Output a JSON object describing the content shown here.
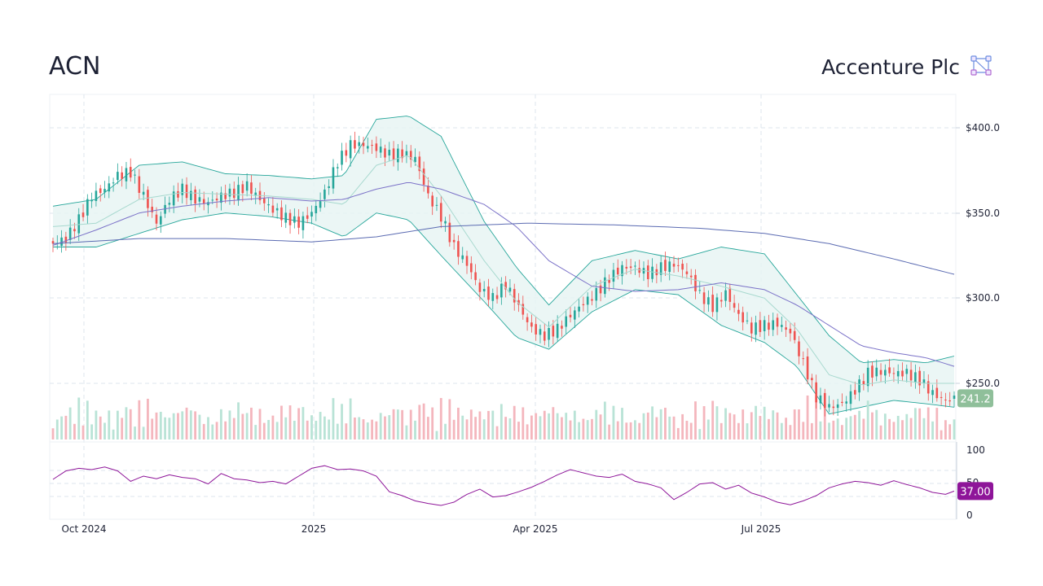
{
  "header": {
    "ticker": "ACN",
    "company": "Accenture Plc",
    "logo_icon": "network-nodes-icon"
  },
  "colors": {
    "up": "#26a69a",
    "down": "#ef5350",
    "band_fill": "#e6f4f2",
    "band_line": "#26a69a",
    "ma_short": "#a8d9cf",
    "ma_mid": "#7b72c8",
    "ma_long": "#5b6bb2",
    "rsi": "#8e1599",
    "price_badge": "#8fbf9a",
    "rsi_badge": "#8e1599",
    "grid": "#dde6ee"
  },
  "chart_data": {
    "type": "candlestick",
    "x_axis": {
      "ticks": [
        "Oct 2024",
        "2025",
        "Apr 2025",
        "Jul 2025"
      ]
    },
    "price_axis": {
      "ticks": [
        "$250.0",
        "$300.0",
        "$350.0",
        "$400.0"
      ],
      "range": [
        230,
        420
      ]
    },
    "rsi_axis": {
      "ticks": [
        "0",
        "50",
        "100"
      ],
      "range": [
        0,
        100
      ]
    },
    "last_price_label": "241.2",
    "last_rsi_label": "37.00",
    "price_close_path": [
      [
        0,
        332
      ],
      [
        6,
        335
      ],
      [
        12,
        346
      ],
      [
        18,
        360
      ],
      [
        24,
        364
      ],
      [
        30,
        372
      ],
      [
        36,
        374
      ],
      [
        42,
        360
      ],
      [
        48,
        344
      ],
      [
        54,
        358
      ],
      [
        60,
        364
      ],
      [
        66,
        358
      ],
      [
        72,
        356
      ],
      [
        78,
        360
      ],
      [
        84,
        362
      ],
      [
        90,
        366
      ],
      [
        96,
        358
      ],
      [
        102,
        352
      ],
      [
        108,
        347
      ],
      [
        114,
        344
      ],
      [
        120,
        350
      ],
      [
        126,
        362
      ],
      [
        132,
        380
      ],
      [
        138,
        390
      ],
      [
        144,
        390
      ],
      [
        150,
        388
      ],
      [
        156,
        384
      ],
      [
        162,
        385
      ],
      [
        168,
        382
      ],
      [
        174,
        360
      ],
      [
        180,
        348
      ],
      [
        186,
        330
      ],
      [
        192,
        320
      ],
      [
        198,
        305
      ],
      [
        204,
        300
      ],
      [
        210,
        308
      ],
      [
        216,
        295
      ],
      [
        222,
        282
      ],
      [
        228,
        278
      ],
      [
        234,
        282
      ],
      [
        240,
        290
      ],
      [
        246,
        297
      ],
      [
        252,
        303
      ],
      [
        258,
        312
      ],
      [
        264,
        318
      ],
      [
        270,
        318
      ],
      [
        276,
        314
      ],
      [
        282,
        318
      ],
      [
        288,
        320
      ],
      [
        294,
        315
      ],
      [
        300,
        302
      ],
      [
        306,
        295
      ],
      [
        312,
        303
      ],
      [
        318,
        290
      ],
      [
        324,
        282
      ],
      [
        330,
        284
      ],
      [
        336,
        285
      ],
      [
        342,
        280
      ],
      [
        348,
        262
      ],
      [
        354,
        242
      ],
      [
        360,
        236
      ],
      [
        366,
        238
      ],
      [
        372,
        246
      ],
      [
        378,
        256
      ],
      [
        384,
        257
      ],
      [
        390,
        256
      ],
      [
        396,
        256
      ],
      [
        402,
        252
      ],
      [
        408,
        244
      ],
      [
        414,
        240
      ],
      [
        418,
        241
      ]
    ],
    "band_upper_path": [
      [
        0,
        354
      ],
      [
        20,
        358
      ],
      [
        40,
        378
      ],
      [
        60,
        380
      ],
      [
        80,
        373
      ],
      [
        100,
        372
      ],
      [
        120,
        370
      ],
      [
        135,
        372
      ],
      [
        150,
        405
      ],
      [
        165,
        407
      ],
      [
        180,
        395
      ],
      [
        200,
        345
      ],
      [
        215,
        318
      ],
      [
        230,
        296
      ],
      [
        250,
        322
      ],
      [
        270,
        328
      ],
      [
        290,
        323
      ],
      [
        310,
        330
      ],
      [
        330,
        326
      ],
      [
        345,
        302
      ],
      [
        360,
        278
      ],
      [
        375,
        262
      ],
      [
        390,
        264
      ],
      [
        405,
        262
      ],
      [
        418,
        266
      ]
    ],
    "band_lower_path": [
      [
        0,
        330
      ],
      [
        20,
        330
      ],
      [
        40,
        338
      ],
      [
        60,
        346
      ],
      [
        80,
        350
      ],
      [
        100,
        348
      ],
      [
        120,
        344
      ],
      [
        135,
        336
      ],
      [
        150,
        350
      ],
      [
        165,
        346
      ],
      [
        180,
        325
      ],
      [
        200,
        298
      ],
      [
        215,
        277
      ],
      [
        230,
        270
      ],
      [
        250,
        292
      ],
      [
        270,
        305
      ],
      [
        290,
        302
      ],
      [
        310,
        284
      ],
      [
        330,
        274
      ],
      [
        345,
        260
      ],
      [
        360,
        232
      ],
      [
        375,
        236
      ],
      [
        390,
        240
      ],
      [
        405,
        238
      ],
      [
        418,
        236
      ]
    ],
    "ma_short_path": [
      [
        0,
        342
      ],
      [
        20,
        344
      ],
      [
        40,
        358
      ],
      [
        60,
        362
      ],
      [
        80,
        361
      ],
      [
        100,
        360
      ],
      [
        120,
        358
      ],
      [
        135,
        355
      ],
      [
        150,
        378
      ],
      [
        165,
        384
      ],
      [
        180,
        360
      ],
      [
        200,
        322
      ],
      [
        215,
        298
      ],
      [
        230,
        283
      ],
      [
        250,
        307
      ],
      [
        270,
        317
      ],
      [
        290,
        313
      ],
      [
        310,
        307
      ],
      [
        330,
        300
      ],
      [
        345,
        282
      ],
      [
        360,
        255
      ],
      [
        375,
        249
      ],
      [
        390,
        252
      ],
      [
        405,
        250
      ],
      [
        418,
        250
      ]
    ],
    "ma_mid_path": [
      [
        0,
        331
      ],
      [
        20,
        340
      ],
      [
        40,
        350
      ],
      [
        60,
        354
      ],
      [
        80,
        357
      ],
      [
        100,
        359
      ],
      [
        120,
        357
      ],
      [
        135,
        358
      ],
      [
        150,
        364
      ],
      [
        165,
        368
      ],
      [
        180,
        364
      ],
      [
        200,
        355
      ],
      [
        215,
        342
      ],
      [
        230,
        322
      ],
      [
        250,
        307
      ],
      [
        270,
        304
      ],
      [
        290,
        305
      ],
      [
        310,
        309
      ],
      [
        330,
        305
      ],
      [
        345,
        296
      ],
      [
        360,
        284
      ],
      [
        375,
        272
      ],
      [
        390,
        268
      ],
      [
        405,
        265
      ],
      [
        418,
        260
      ]
    ],
    "ma_long_path": [
      [
        0,
        332
      ],
      [
        40,
        335
      ],
      [
        80,
        335
      ],
      [
        120,
        333
      ],
      [
        150,
        336
      ],
      [
        180,
        342
      ],
      [
        220,
        344
      ],
      [
        260,
        343
      ],
      [
        300,
        341
      ],
      [
        330,
        338
      ],
      [
        360,
        332
      ],
      [
        390,
        323
      ],
      [
        418,
        314
      ]
    ],
    "rsi_path": [
      [
        0,
        55
      ],
      [
        6,
        68
      ],
      [
        12,
        72
      ],
      [
        18,
        70
      ],
      [
        24,
        74
      ],
      [
        30,
        68
      ],
      [
        36,
        52
      ],
      [
        42,
        60
      ],
      [
        48,
        56
      ],
      [
        54,
        62
      ],
      [
        60,
        58
      ],
      [
        66,
        56
      ],
      [
        72,
        48
      ],
      [
        78,
        64
      ],
      [
        84,
        56
      ],
      [
        90,
        54
      ],
      [
        96,
        50
      ],
      [
        102,
        52
      ],
      [
        108,
        48
      ],
      [
        114,
        60
      ],
      [
        120,
        72
      ],
      [
        126,
        76
      ],
      [
        132,
        70
      ],
      [
        138,
        71
      ],
      [
        144,
        68
      ],
      [
        150,
        60
      ],
      [
        156,
        36
      ],
      [
        162,
        30
      ],
      [
        168,
        22
      ],
      [
        174,
        18
      ],
      [
        180,
        15
      ],
      [
        186,
        20
      ],
      [
        192,
        32
      ],
      [
        198,
        40
      ],
      [
        204,
        28
      ],
      [
        210,
        30
      ],
      [
        216,
        36
      ],
      [
        222,
        43
      ],
      [
        228,
        52
      ],
      [
        234,
        62
      ],
      [
        240,
        70
      ],
      [
        246,
        65
      ],
      [
        252,
        60
      ],
      [
        258,
        58
      ],
      [
        264,
        63
      ],
      [
        270,
        52
      ],
      [
        276,
        48
      ],
      [
        282,
        42
      ],
      [
        288,
        24
      ],
      [
        294,
        35
      ],
      [
        300,
        48
      ],
      [
        306,
        50
      ],
      [
        312,
        40
      ],
      [
        318,
        46
      ],
      [
        324,
        34
      ],
      [
        330,
        28
      ],
      [
        336,
        20
      ],
      [
        342,
        16
      ],
      [
        348,
        22
      ],
      [
        354,
        30
      ],
      [
        360,
        42
      ],
      [
        366,
        48
      ],
      [
        372,
        52
      ],
      [
        378,
        50
      ],
      [
        384,
        46
      ],
      [
        390,
        53
      ],
      [
        396,
        47
      ],
      [
        402,
        42
      ],
      [
        408,
        35
      ],
      [
        414,
        32
      ],
      [
        418,
        37
      ]
    ]
  }
}
